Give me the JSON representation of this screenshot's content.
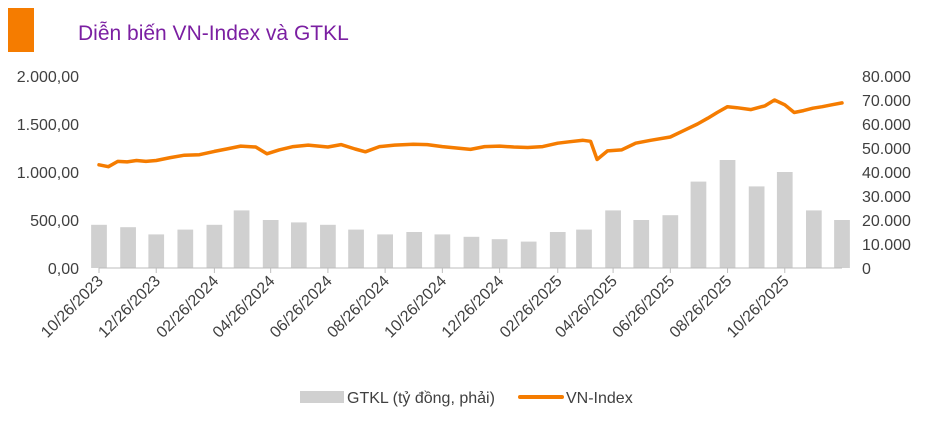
{
  "header": {
    "title": "Diễn biến VN-Index và GTKL",
    "accent_color": "#F57C00",
    "title_color": "#7B1FA2"
  },
  "chart_data": {
    "type": "line",
    "title": "Diễn biến VN-Index và GTKL",
    "x_label": "",
    "x_tick_labels": [
      "10/26/2023",
      "12/26/2023",
      "02/26/2024",
      "04/26/2024",
      "06/26/2024",
      "08/26/2024",
      "10/26/2024",
      "12/26/2024",
      "02/26/2025",
      "04/26/2025",
      "06/26/2025",
      "08/26/2025",
      "10/26/2025"
    ],
    "x_range": [
      "10/26/2023",
      "12/26/2025"
    ],
    "y_left": {
      "label": "",
      "range": [
        0,
        2000
      ],
      "ticks": [
        "0,00",
        "500,00",
        "1.000,00",
        "1.500,00",
        "2.000,00"
      ]
    },
    "y_right": {
      "label": "",
      "range": [
        0,
        80000
      ],
      "ticks": [
        "0",
        "10.000",
        "20.000",
        "30.000",
        "40.000",
        "50.000",
        "60.000",
        "70.000",
        "80.000"
      ]
    },
    "grid": false,
    "legend_position": "bottom",
    "series": [
      {
        "name": "VN-Index",
        "type": "line",
        "axis": "left",
        "color": "#F57C00",
        "points": [
          [
            "10/26/2023",
            1075
          ],
          [
            "11/05/2023",
            1055
          ],
          [
            "11/15/2023",
            1110
          ],
          [
            "11/25/2023",
            1105
          ],
          [
            "12/05/2023",
            1120
          ],
          [
            "12/15/2023",
            1110
          ],
          [
            "12/26/2023",
            1120
          ],
          [
            "01/10/2024",
            1150
          ],
          [
            "01/25/2024",
            1175
          ],
          [
            "02/10/2024",
            1180
          ],
          [
            "02/26/2024",
            1215
          ],
          [
            "03/10/2024",
            1240
          ],
          [
            "03/25/2024",
            1270
          ],
          [
            "04/10/2024",
            1260
          ],
          [
            "04/22/2024",
            1190
          ],
          [
            "05/05/2024",
            1230
          ],
          [
            "05/20/2024",
            1265
          ],
          [
            "06/05/2024",
            1280
          ],
          [
            "06/26/2024",
            1260
          ],
          [
            "07/10/2024",
            1285
          ],
          [
            "07/25/2024",
            1240
          ],
          [
            "08/05/2024",
            1210
          ],
          [
            "08/20/2024",
            1265
          ],
          [
            "09/05/2024",
            1280
          ],
          [
            "09/25/2024",
            1290
          ],
          [
            "10/10/2024",
            1285
          ],
          [
            "10/26/2024",
            1265
          ],
          [
            "11/10/2024",
            1250
          ],
          [
            "11/25/2024",
            1235
          ],
          [
            "12/10/2024",
            1265
          ],
          [
            "12/26/2024",
            1270
          ],
          [
            "01/10/2025",
            1260
          ],
          [
            "01/25/2025",
            1255
          ],
          [
            "02/10/2025",
            1265
          ],
          [
            "02/26/2025",
            1300
          ],
          [
            "03/10/2025",
            1315
          ],
          [
            "03/25/2025",
            1330
          ],
          [
            "04/02/2025",
            1320
          ],
          [
            "04/09/2025",
            1130
          ],
          [
            "04/20/2025",
            1220
          ],
          [
            "05/05/2025",
            1230
          ],
          [
            "05/20/2025",
            1300
          ],
          [
            "06/05/2025",
            1330
          ],
          [
            "06/26/2025",
            1365
          ],
          [
            "07/10/2025",
            1430
          ],
          [
            "07/25/2025",
            1500
          ],
          [
            "08/05/2025",
            1560
          ],
          [
            "08/15/2025",
            1620
          ],
          [
            "08/26/2025",
            1680
          ],
          [
            "09/05/2025",
            1670
          ],
          [
            "09/20/2025",
            1650
          ],
          [
            "10/05/2025",
            1690
          ],
          [
            "10/15/2025",
            1750
          ],
          [
            "10/26/2025",
            1700
          ],
          [
            "11/05/2025",
            1620
          ],
          [
            "11/15/2025",
            1640
          ],
          [
            "11/25/2025",
            1665
          ],
          [
            "12/05/2025",
            1680
          ],
          [
            "12/15/2025",
            1700
          ],
          [
            "12/26/2025",
            1720
          ]
        ]
      },
      {
        "name": "GTKL (tỷ đồng, phải)",
        "type": "bar",
        "axis": "right",
        "color": "#D0D0D0",
        "points": [
          [
            "10/26/2023",
            18000
          ],
          [
            "11/26/2023",
            17000
          ],
          [
            "12/26/2023",
            14000
          ],
          [
            "01/26/2024",
            16000
          ],
          [
            "02/26/2024",
            18000
          ],
          [
            "03/26/2024",
            24000
          ],
          [
            "04/26/2024",
            20000
          ],
          [
            "05/26/2024",
            19000
          ],
          [
            "06/26/2024",
            18000
          ],
          [
            "07/26/2024",
            16000
          ],
          [
            "08/26/2024",
            14000
          ],
          [
            "09/26/2024",
            15000
          ],
          [
            "10/26/2024",
            14000
          ],
          [
            "11/26/2024",
            13000
          ],
          [
            "12/26/2024",
            12000
          ],
          [
            "01/26/2025",
            11000
          ],
          [
            "02/26/2025",
            15000
          ],
          [
            "03/26/2025",
            16000
          ],
          [
            "04/26/2025",
            24000
          ],
          [
            "05/26/2025",
            20000
          ],
          [
            "06/26/2025",
            22000
          ],
          [
            "07/26/2025",
            36000
          ],
          [
            "08/26/2025",
            45000
          ],
          [
            "09/26/2025",
            34000
          ],
          [
            "10/26/2025",
            40000
          ],
          [
            "11/26/2025",
            24000
          ],
          [
            "12/26/2025",
            20000
          ]
        ]
      }
    ],
    "legend": [
      "GTKL (tỷ đồng, phải)",
      "VN-Index"
    ]
  }
}
